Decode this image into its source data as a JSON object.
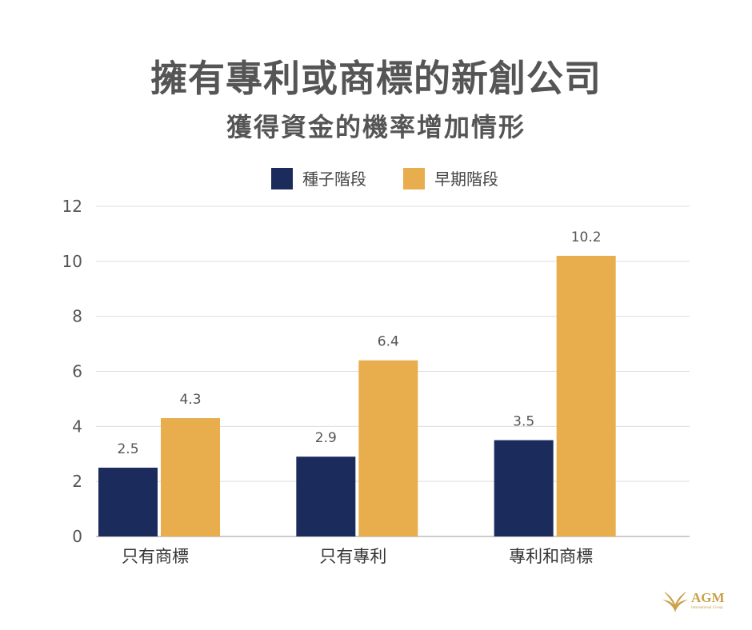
{
  "chart_data": {
    "type": "bar",
    "title": "擁有專利或商標的新創公司",
    "subtitle": "獲得資金的機率增加情形",
    "categories": [
      "只有商標",
      "只有專利",
      "專利和商標"
    ],
    "series": [
      {
        "name": "種子階段",
        "values": [
          2.5,
          2.9,
          3.5
        ],
        "color": "#1b2c5c"
      },
      {
        "name": "早期階段",
        "values": [
          4.3,
          6.4,
          10.2
        ],
        "color": "#e8ad4c"
      }
    ],
    "ylim": [
      0,
      12
    ],
    "yticks": [
      0,
      2,
      4,
      6,
      8,
      10,
      12
    ],
    "grid": true,
    "legend_position": "top-center",
    "xlabel": "",
    "ylabel": ""
  },
  "logo": {
    "name": "AGM",
    "sub": "International Group",
    "color": "#c9a24a"
  }
}
